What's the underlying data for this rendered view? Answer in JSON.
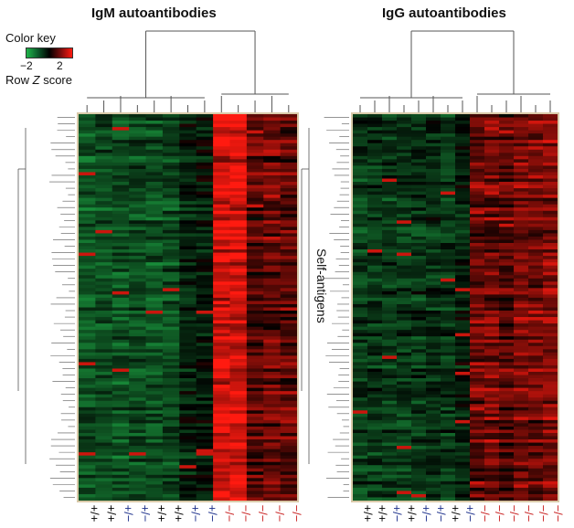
{
  "colors": {
    "low": "#1fb54a",
    "mid": "#000000",
    "high": "#ff1a10",
    "wt_label": "#000000",
    "het_label": "#1a2e8a",
    "ko_label": "#c81e1e",
    "dendrogram": "#555555",
    "frame": "#d9c9a8"
  },
  "color_key": {
    "title": "Color key",
    "min_label": "−2",
    "max_label": "2",
    "label_prefix": "Row ",
    "label_italic": "Z",
    "label_suffix": " score"
  },
  "side_label": "Self-antigens",
  "chart_data": [
    {
      "type": "heatmap",
      "title": "IgM autoantibodies",
      "rows": 120,
      "value_range": [
        -2,
        2
      ],
      "columns": [
        "+/+",
        "+/+",
        "+/−",
        "+/−",
        "+/+",
        "+/+",
        "+/−",
        "+/−",
        "−/−",
        "−/−",
        "−/−",
        "−/−",
        "−/−"
      ],
      "column_groups": [
        "wt",
        "wt",
        "het",
        "het",
        "wt",
        "wt",
        "het",
        "het",
        "ko",
        "ko",
        "ko",
        "ko",
        "ko"
      ],
      "column_mean_z": [
        -0.9,
        -0.85,
        -0.9,
        -0.85,
        -0.9,
        -0.8,
        -0.4,
        -0.25,
        1.6,
        1.7,
        0.6,
        0.8,
        0.7
      ]
    },
    {
      "type": "heatmap",
      "title": "IgG autoantibodies",
      "rows": 120,
      "value_range": [
        -2,
        2
      ],
      "columns": [
        "+/+",
        "+/+",
        "+/−",
        "+/+",
        "+/−",
        "+/−",
        "+/+",
        "+/−",
        "−/−",
        "−/−",
        "−/−",
        "−/−",
        "−/−",
        "−/−"
      ],
      "column_groups": [
        "wt",
        "wt",
        "het",
        "wt",
        "het",
        "het",
        "wt",
        "het",
        "ko",
        "ko",
        "ko",
        "ko",
        "ko",
        "ko"
      ],
      "column_mean_z": [
        -0.6,
        -0.55,
        -0.6,
        -0.6,
        -0.55,
        -0.5,
        -0.55,
        -0.3,
        0.8,
        0.9,
        0.7,
        1.0,
        0.9,
        1.1
      ]
    }
  ]
}
